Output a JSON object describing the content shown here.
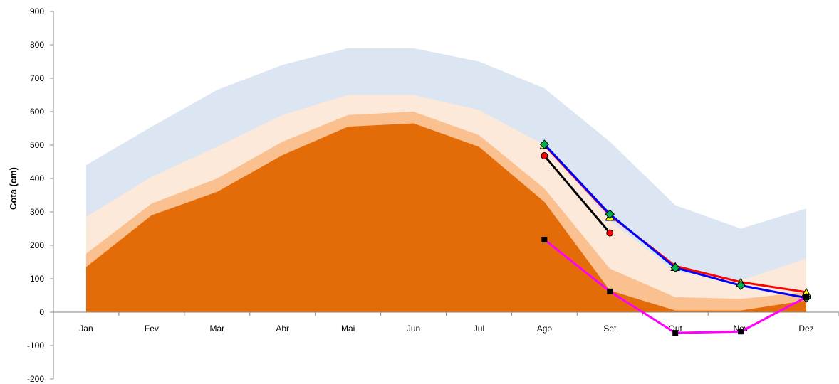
{
  "chart_data": {
    "type": "area",
    "title": "",
    "xlabel": "",
    "ylabel": "Cota (cm)",
    "ylim": [
      -200,
      900
    ],
    "yticks": [
      -200,
      -100,
      0,
      100,
      200,
      300,
      400,
      500,
      600,
      700,
      800,
      900
    ],
    "categories": [
      "Jan",
      "Fev",
      "Mar",
      "Abr",
      "Mai",
      "Jun",
      "Jul",
      "Ago",
      "Set",
      "Out",
      "Nov",
      "Dez"
    ],
    "legend": "none",
    "grid": false,
    "bands": [
      {
        "color": "#dce6f2",
        "values": [
          440,
          555,
          665,
          740,
          790,
          790,
          750,
          670,
          510,
          320,
          250,
          310
        ]
      },
      {
        "color": "#fde9d9",
        "values": [
          285,
          405,
          495,
          590,
          650,
          650,
          605,
          500,
          275,
          120,
          95,
          160
        ]
      },
      {
        "color": "#fac090",
        "values": [
          175,
          325,
          400,
          510,
          590,
          600,
          530,
          370,
          130,
          45,
          40,
          60
        ]
      },
      {
        "color": "#e36c09",
        "values": [
          135,
          290,
          360,
          470,
          555,
          565,
          495,
          330,
          65,
          5,
          5,
          35
        ]
      }
    ],
    "series": [
      {
        "color": "#ff0000",
        "marker": "none",
        "x": [
          "Ago",
          "Set",
          "Out",
          "Nov",
          "Dez"
        ],
        "values": [
          500,
          290,
          138,
          90,
          60
        ]
      },
      {
        "color": "#000000",
        "marker": "circle",
        "marker_color": "#ff0000",
        "x": [
          "Ago",
          "Set"
        ],
        "values": [
          468,
          237
        ]
      },
      {
        "color": "none",
        "marker": "triangle",
        "marker_color": "#ffff00",
        "x": [
          "Ago",
          "Set",
          "Out",
          "Nov",
          "Dez"
        ],
        "values": [
          500,
          285,
          135,
          88,
          58
        ]
      },
      {
        "color": "#0000ff",
        "marker": "diamond",
        "marker_color": "#00b050",
        "x": [
          "Ago",
          "Set",
          "Out",
          "Nov",
          "Dez"
        ],
        "values": [
          502,
          293,
          133,
          80,
          43
        ]
      },
      {
        "color": "#ff00ff",
        "marker": "square",
        "marker_color": "#000000",
        "x": [
          "Ago",
          "Set",
          "Out",
          "Nov",
          "Dez"
        ],
        "values": [
          217,
          62,
          -62,
          -58,
          45
        ]
      }
    ]
  }
}
